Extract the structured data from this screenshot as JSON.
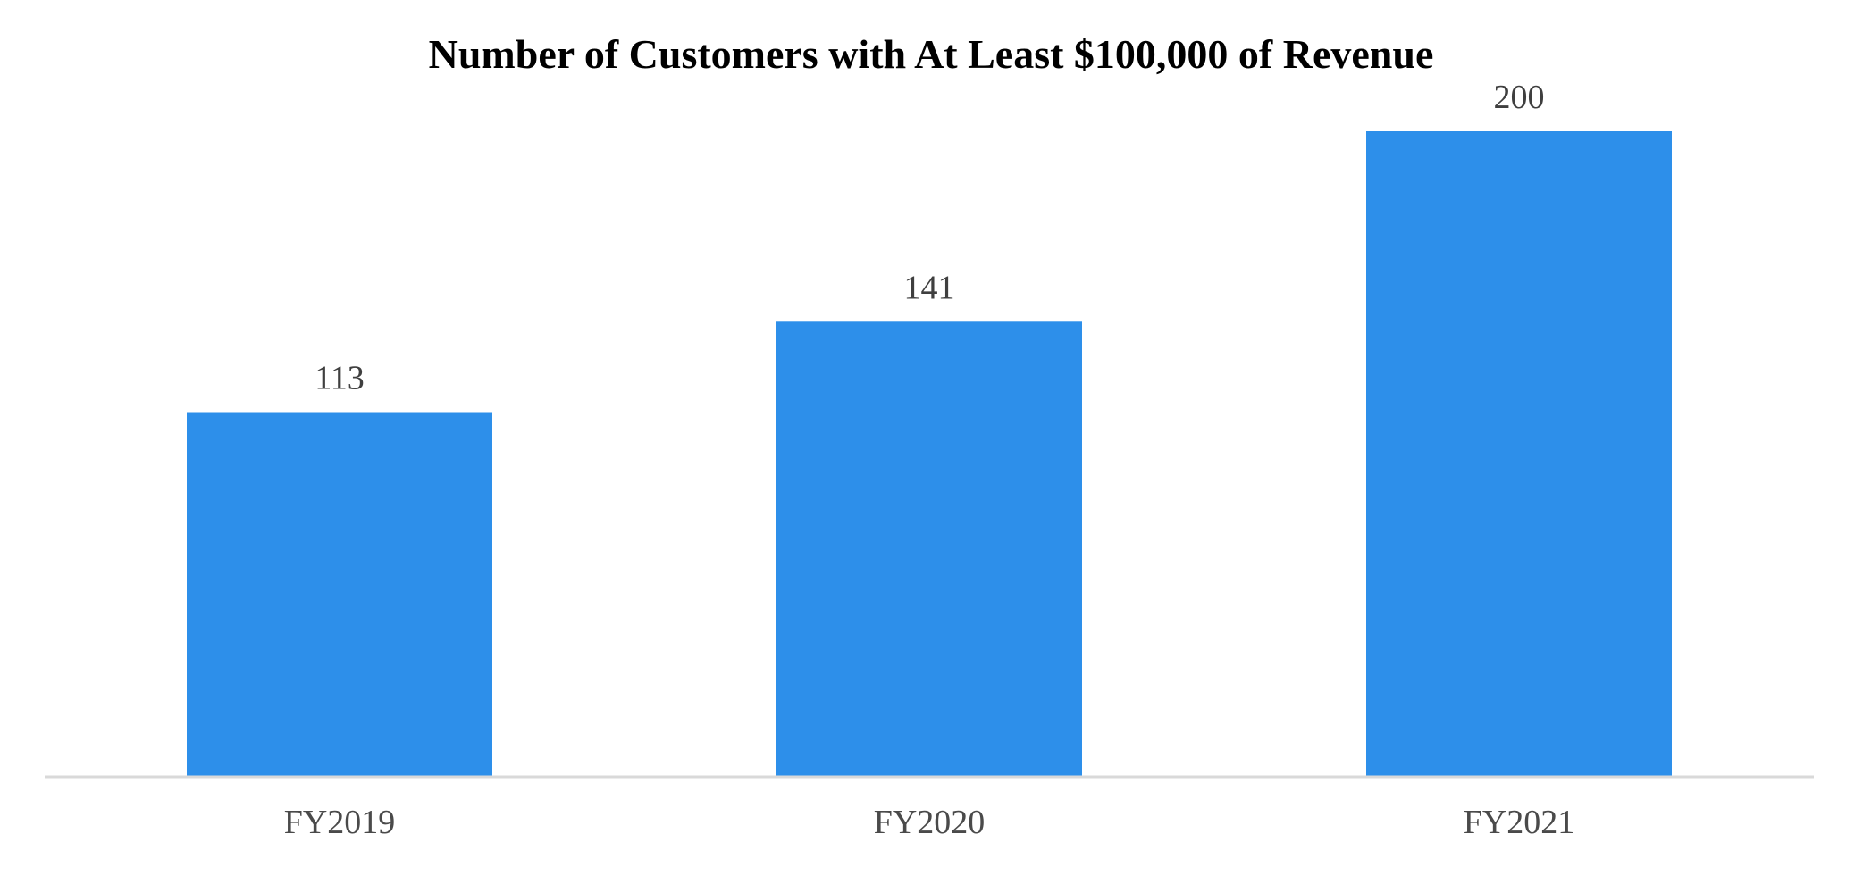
{
  "chart_data": {
    "type": "bar",
    "title": "Number of Customers with At Least $100,000 of Revenue",
    "xlabel": "",
    "ylabel": "",
    "categories": [
      "FY2019",
      "FY2020",
      "FY2021"
    ],
    "values": [
      113,
      141,
      200
    ],
    "data_labels": [
      "113",
      "141",
      "200"
    ],
    "ylim": [
      0,
      200
    ],
    "grid": false,
    "legend": "none",
    "bar_color": "#2d8fea",
    "axis_color": "#d9d9d9"
  }
}
